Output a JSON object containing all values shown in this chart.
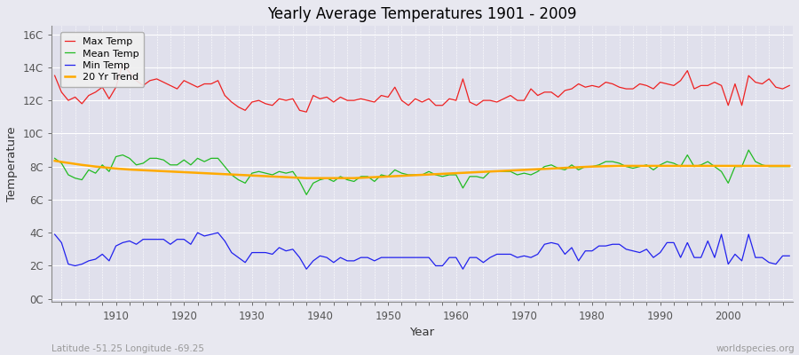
{
  "title": "Yearly Average Temperatures 1901 - 2009",
  "xlabel": "Year",
  "ylabel": "Temperature",
  "x_start": 1901,
  "x_end": 2009,
  "yticks": [
    0,
    2,
    4,
    6,
    8,
    10,
    12,
    14,
    16
  ],
  "ytick_labels": [
    "0C",
    "2C",
    "4C",
    "6C",
    "8C",
    "10C",
    "12C",
    "14C",
    "16C"
  ],
  "ylim": [
    -0.2,
    16.5
  ],
  "xlim": [
    1900.5,
    2009.5
  ],
  "fig_bg_color": "#e8e8f0",
  "plot_bg_color": "#e0e0ec",
  "grid_color": "#ffffff",
  "max_color": "#ee2222",
  "mean_color": "#22bb22",
  "min_color": "#2222ee",
  "trend_color": "#ffaa00",
  "legend_labels": [
    "Max Temp",
    "Mean Temp",
    "Min Temp",
    "20 Yr Trend"
  ],
  "footnote_left": "Latitude -51.25 Longitude -69.25",
  "footnote_right": "worldspecies.org",
  "max_temp": [
    13.5,
    12.5,
    12.0,
    12.2,
    11.8,
    12.3,
    12.5,
    12.8,
    12.1,
    12.8,
    14.2,
    13.7,
    13.2,
    12.9,
    13.2,
    13.3,
    13.1,
    12.9,
    12.7,
    13.2,
    13.0,
    12.8,
    13.0,
    13.0,
    13.2,
    12.3,
    11.9,
    11.6,
    11.4,
    11.9,
    12.0,
    11.8,
    11.7,
    12.1,
    12.0,
    12.1,
    11.4,
    11.3,
    12.3,
    12.1,
    12.2,
    11.9,
    12.2,
    12.0,
    12.0,
    12.1,
    12.0,
    11.9,
    12.3,
    12.2,
    12.8,
    12.0,
    11.7,
    12.1,
    11.9,
    12.1,
    11.7,
    11.7,
    12.1,
    12.0,
    13.3,
    11.9,
    11.7,
    12.0,
    12.0,
    11.9,
    12.1,
    12.3,
    12.0,
    12.0,
    12.7,
    12.3,
    12.5,
    12.5,
    12.2,
    12.6,
    12.7,
    13.0,
    12.8,
    12.9,
    12.8,
    13.1,
    13.0,
    12.8,
    12.7,
    12.7,
    13.0,
    12.9,
    12.7,
    13.1,
    13.0,
    12.9,
    13.2,
    13.8,
    12.7,
    12.9,
    12.9,
    13.1,
    12.9,
    11.7,
    13.0,
    11.7,
    13.5,
    13.1,
    13.0,
    13.3,
    12.8,
    12.7,
    12.9
  ],
  "mean_temp": [
    8.5,
    8.2,
    7.5,
    7.3,
    7.2,
    7.8,
    7.6,
    8.1,
    7.7,
    8.6,
    8.7,
    8.5,
    8.1,
    8.2,
    8.5,
    8.5,
    8.4,
    8.1,
    8.1,
    8.4,
    8.1,
    8.5,
    8.3,
    8.5,
    8.5,
    8.0,
    7.5,
    7.2,
    7.0,
    7.6,
    7.7,
    7.6,
    7.5,
    7.7,
    7.6,
    7.7,
    7.1,
    6.3,
    7.0,
    7.2,
    7.3,
    7.1,
    7.4,
    7.2,
    7.1,
    7.4,
    7.4,
    7.1,
    7.5,
    7.4,
    7.8,
    7.6,
    7.5,
    7.5,
    7.5,
    7.7,
    7.5,
    7.4,
    7.5,
    7.5,
    6.7,
    7.4,
    7.4,
    7.3,
    7.7,
    7.7,
    7.7,
    7.7,
    7.5,
    7.6,
    7.5,
    7.7,
    8.0,
    8.1,
    7.9,
    7.8,
    8.1,
    7.8,
    8.0,
    8.0,
    8.1,
    8.3,
    8.3,
    8.2,
    8.0,
    7.9,
    8.0,
    8.1,
    7.8,
    8.1,
    8.3,
    8.2,
    8.0,
    8.7,
    8.0,
    8.1,
    8.3,
    8.0,
    7.7,
    7.0,
    8.0,
    8.0,
    9.0,
    8.3,
    8.1,
    8.0,
    8.0,
    8.0,
    8.0
  ],
  "min_temp": [
    3.9,
    3.4,
    2.1,
    2.0,
    2.1,
    2.3,
    2.4,
    2.7,
    2.3,
    3.2,
    3.4,
    3.5,
    3.3,
    3.6,
    3.6,
    3.6,
    3.6,
    3.3,
    3.6,
    3.6,
    3.3,
    4.0,
    3.8,
    3.9,
    4.0,
    3.5,
    2.8,
    2.5,
    2.2,
    2.8,
    2.8,
    2.8,
    2.7,
    3.1,
    2.9,
    3.0,
    2.5,
    1.8,
    2.3,
    2.6,
    2.5,
    2.2,
    2.5,
    2.3,
    2.3,
    2.5,
    2.5,
    2.3,
    2.5,
    2.5,
    2.5,
    2.5,
    2.5,
    2.5,
    2.5,
    2.5,
    2.0,
    2.0,
    2.5,
    2.5,
    1.8,
    2.5,
    2.5,
    2.2,
    2.5,
    2.7,
    2.7,
    2.7,
    2.5,
    2.6,
    2.5,
    2.7,
    3.3,
    3.4,
    3.3,
    2.7,
    3.1,
    2.3,
    2.9,
    2.9,
    3.2,
    3.2,
    3.3,
    3.3,
    3.0,
    2.9,
    2.8,
    3.0,
    2.5,
    2.8,
    3.4,
    3.4,
    2.5,
    3.4,
    2.5,
    2.5,
    3.5,
    2.5,
    3.9,
    2.1,
    2.7,
    2.3,
    3.9,
    2.5,
    2.5,
    2.2,
    2.1,
    2.6,
    2.6
  ],
  "trend_temp": [
    8.35,
    8.28,
    8.22,
    8.16,
    8.1,
    8.05,
    8.0,
    7.96,
    7.92,
    7.88,
    7.85,
    7.82,
    7.8,
    7.78,
    7.76,
    7.74,
    7.72,
    7.7,
    7.68,
    7.66,
    7.64,
    7.62,
    7.6,
    7.58,
    7.56,
    7.54,
    7.52,
    7.5,
    7.48,
    7.46,
    7.44,
    7.42,
    7.4,
    7.38,
    7.36,
    7.34,
    7.32,
    7.3,
    7.3,
    7.3,
    7.3,
    7.3,
    7.3,
    7.3,
    7.3,
    7.32,
    7.34,
    7.36,
    7.38,
    7.4,
    7.42,
    7.44,
    7.46,
    7.48,
    7.5,
    7.52,
    7.54,
    7.56,
    7.58,
    7.6,
    7.62,
    7.64,
    7.66,
    7.68,
    7.7,
    7.72,
    7.74,
    7.76,
    7.78,
    7.8,
    7.82,
    7.84,
    7.86,
    7.88,
    7.9,
    7.92,
    7.94,
    7.96,
    7.98,
    8.0,
    8.01,
    8.02,
    8.03,
    8.04,
    8.04,
    8.04,
    8.04,
    8.04,
    8.04,
    8.04,
    8.04,
    8.04,
    8.04,
    8.04,
    8.04,
    8.04,
    8.04,
    8.04,
    8.04,
    8.04,
    8.04,
    8.04,
    8.04,
    8.04,
    8.04,
    8.04,
    8.04,
    8.04,
    8.04
  ]
}
